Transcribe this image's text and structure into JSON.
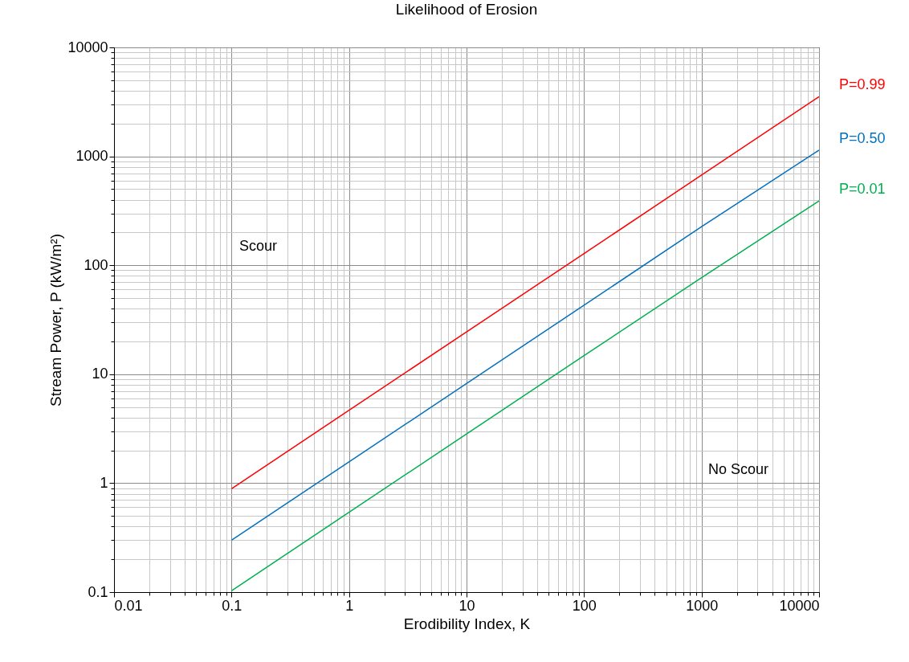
{
  "chart_data": {
    "type": "line",
    "title": "Likelihood of Erosion",
    "xlabel": "Erodibility Index, K",
    "ylabel": "Stream Power, P (kW/m²)",
    "log": "xy",
    "grid": true,
    "marker": "none",
    "line_style": "solid",
    "x": [
      0.1,
      1,
      10,
      100,
      1000,
      10000
    ],
    "xlim": [
      0.01,
      10000
    ],
    "xticks": [
      0.01,
      0.1,
      1,
      10,
      100,
      1000,
      10000
    ],
    "ylim": [
      0.1,
      10000
    ],
    "yticks": [
      0.1,
      1,
      10,
      100,
      1000,
      10000
    ],
    "series": [
      {
        "name": "P=0.99",
        "color": "#ff0000",
        "values": [
          0.89,
          4.67,
          24.5,
          128,
          673,
          3530
        ]
      },
      {
        "name": "P=0.50",
        "color": "#0070c0",
        "values": [
          0.3,
          1.57,
          8.2,
          43,
          226,
          1140
        ]
      },
      {
        "name": "P=0.01",
        "color": "#00b050",
        "values": [
          0.103,
          0.54,
          2.83,
          14.8,
          77,
          390
        ]
      }
    ],
    "annotations": [
      "Scour",
      "No Scour"
    ]
  }
}
